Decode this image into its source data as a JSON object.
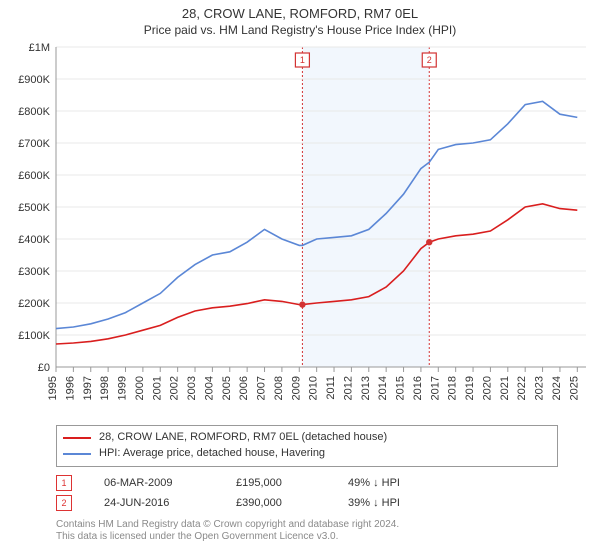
{
  "header": {
    "title": "28, CROW LANE, ROMFORD, RM7 0EL",
    "subtitle": "Price paid vs. HM Land Registry's House Price Index (HPI)"
  },
  "chart": {
    "type": "line",
    "background_color": "#ffffff",
    "grid_color": "#e8e8e8",
    "axis_color": "#999999",
    "shade_color": "#eaf1fb",
    "shade_opacity": 0.6,
    "xlim": [
      1995,
      2025.5
    ],
    "ylim": [
      0,
      1000000
    ],
    "y_ticks": [
      {
        "v": 0,
        "label": "£0"
      },
      {
        "v": 100000,
        "label": "£100K"
      },
      {
        "v": 200000,
        "label": "£200K"
      },
      {
        "v": 300000,
        "label": "£300K"
      },
      {
        "v": 400000,
        "label": "£400K"
      },
      {
        "v": 500000,
        "label": "£500K"
      },
      {
        "v": 600000,
        "label": "£600K"
      },
      {
        "v": 700000,
        "label": "£700K"
      },
      {
        "v": 800000,
        "label": "£800K"
      },
      {
        "v": 900000,
        "label": "£900K"
      },
      {
        "v": 1000000,
        "label": "£1M"
      }
    ],
    "x_ticks": [
      1995,
      1996,
      1997,
      1998,
      1999,
      2000,
      2001,
      2002,
      2003,
      2004,
      2005,
      2006,
      2007,
      2008,
      2009,
      2010,
      2011,
      2012,
      2013,
      2014,
      2015,
      2016,
      2017,
      2018,
      2019,
      2020,
      2021,
      2022,
      2023,
      2024,
      2025
    ],
    "shade_range": [
      2009.18,
      2016.48
    ],
    "markers": [
      {
        "label": "1",
        "x": 2009.18,
        "y": 195000,
        "color": "#d33333"
      },
      {
        "label": "2",
        "x": 2016.48,
        "y": 390000,
        "color": "#d33333"
      }
    ],
    "series": [
      {
        "name": "property",
        "label": "28, CROW LANE, ROMFORD, RM7 0EL (detached house)",
        "color": "#d91e1e",
        "width": 1.7,
        "points": [
          [
            1995,
            72000
          ],
          [
            1996,
            75000
          ],
          [
            1997,
            80000
          ],
          [
            1998,
            88000
          ],
          [
            1999,
            100000
          ],
          [
            2000,
            115000
          ],
          [
            2001,
            130000
          ],
          [
            2002,
            155000
          ],
          [
            2003,
            175000
          ],
          [
            2004,
            185000
          ],
          [
            2005,
            190000
          ],
          [
            2006,
            198000
          ],
          [
            2007,
            210000
          ],
          [
            2008,
            205000
          ],
          [
            2009,
            195000
          ],
          [
            2009.18,
            195000
          ],
          [
            2010,
            200000
          ],
          [
            2011,
            205000
          ],
          [
            2012,
            210000
          ],
          [
            2013,
            220000
          ],
          [
            2014,
            250000
          ],
          [
            2015,
            300000
          ],
          [
            2016,
            370000
          ],
          [
            2016.48,
            390000
          ],
          [
            2017,
            400000
          ],
          [
            2018,
            410000
          ],
          [
            2019,
            415000
          ],
          [
            2020,
            425000
          ],
          [
            2021,
            460000
          ],
          [
            2022,
            500000
          ],
          [
            2023,
            510000
          ],
          [
            2024,
            495000
          ],
          [
            2025,
            490000
          ]
        ]
      },
      {
        "name": "hpi",
        "label": "HPI: Average price, detached house, Havering",
        "color": "#5b87d6",
        "width": 1.3,
        "points": [
          [
            1995,
            120000
          ],
          [
            1996,
            125000
          ],
          [
            1997,
            135000
          ],
          [
            1998,
            150000
          ],
          [
            1999,
            170000
          ],
          [
            2000,
            200000
          ],
          [
            2001,
            230000
          ],
          [
            2002,
            280000
          ],
          [
            2003,
            320000
          ],
          [
            2004,
            350000
          ],
          [
            2005,
            360000
          ],
          [
            2006,
            390000
          ],
          [
            2007,
            430000
          ],
          [
            2008,
            400000
          ],
          [
            2009,
            380000
          ],
          [
            2009.18,
            380000
          ],
          [
            2010,
            400000
          ],
          [
            2011,
            405000
          ],
          [
            2012,
            410000
          ],
          [
            2013,
            430000
          ],
          [
            2014,
            480000
          ],
          [
            2015,
            540000
          ],
          [
            2016,
            620000
          ],
          [
            2016.48,
            640000
          ],
          [
            2017,
            680000
          ],
          [
            2018,
            695000
          ],
          [
            2019,
            700000
          ],
          [
            2020,
            710000
          ],
          [
            2021,
            760000
          ],
          [
            2022,
            820000
          ],
          [
            2023,
            830000
          ],
          [
            2024,
            790000
          ],
          [
            2025,
            780000
          ]
        ]
      }
    ]
  },
  "legend": {
    "items": [
      {
        "color": "#d91e1e",
        "label": "28, CROW LANE, ROMFORD, RM7 0EL (detached house)"
      },
      {
        "color": "#5b87d6",
        "label": "HPI: Average price, detached house, Havering"
      }
    ]
  },
  "transactions": [
    {
      "marker": "1",
      "date": "06-MAR-2009",
      "price": "£195,000",
      "delta": "49% ↓ HPI"
    },
    {
      "marker": "2",
      "date": "24-JUN-2016",
      "price": "£390,000",
      "delta": "39% ↓ HPI"
    }
  ],
  "footer": {
    "line1": "Contains HM Land Registry data © Crown copyright and database right 2024.",
    "line2": "This data is licensed under the Open Government Licence v3.0."
  }
}
